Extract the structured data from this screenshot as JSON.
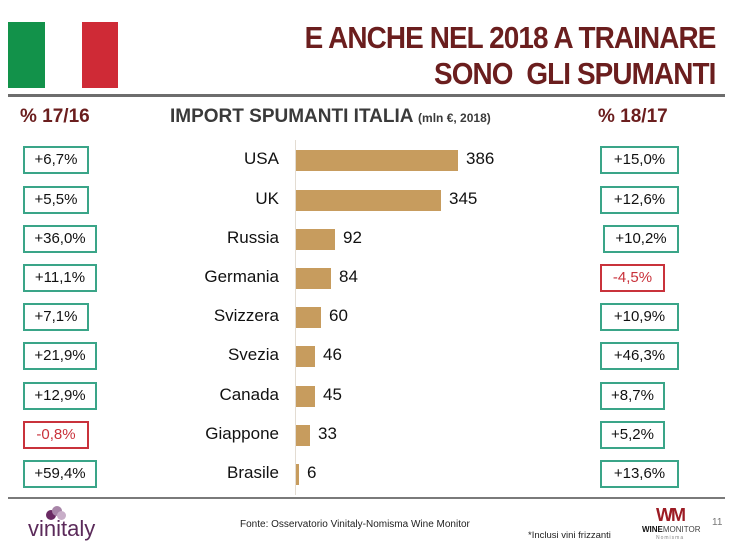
{
  "header": {
    "title_line1": "E ANCHE NEL 2018 A TRAINARE",
    "title_line2": "SONO  GLI SPUMANTI",
    "flag_colors": {
      "green": "#12924a",
      "white": "#ffffff",
      "red": "#cf2a36"
    }
  },
  "columns": {
    "left_header": "% 17/16",
    "right_header": "% 18/17"
  },
  "chart_title": {
    "main": "IMPORT SPUMANTI ITALIA",
    "unit": "(mln €, 2018)"
  },
  "rows": [
    {
      "country": "USA",
      "value": "386",
      "pct_17_16": "+6,7%",
      "pct_18_17": "+15,0%"
    },
    {
      "country": "UK",
      "value": "345",
      "pct_17_16": "+5,5%",
      "pct_18_17": "+12,6%"
    },
    {
      "country": "Russia",
      "value": "92",
      "pct_17_16": "+36,0%",
      "pct_18_17": "+10,2%"
    },
    {
      "country": "Germania",
      "value": "84",
      "pct_17_16": "+11,1%",
      "pct_18_17": "-4,5%"
    },
    {
      "country": "Svizzera",
      "value": "60",
      "pct_17_16": "+7,1%",
      "pct_18_17": "+10,9%"
    },
    {
      "country": "Svezia",
      "value": "46",
      "pct_17_16": "+21,9%",
      "pct_18_17": "+46,3%"
    },
    {
      "country": "Canada",
      "value": "45",
      "pct_17_16": "+12,9%",
      "pct_18_17": "+8,7%"
    },
    {
      "country": "Giappone",
      "value": "33",
      "pct_17_16": "-0,8%",
      "pct_18_17": "+5,2%"
    },
    {
      "country": "Brasile",
      "value": "6",
      "pct_17_16": "+59,4%",
      "pct_18_17": "+13,6%"
    }
  ],
  "colors": {
    "title": "#6b1e1e",
    "bar": "#c79c5e",
    "positive_border": "#3aa588",
    "negative": "#c9323b"
  },
  "footer": {
    "brand_left": "vinitaly",
    "source": "Fonte: Osservatorio Vinitaly-Nomisma Wine Monitor",
    "footnote": "*Inclusi vini frizzanti",
    "brand_right_mark": "WM",
    "brand_right_bold": "WINE",
    "brand_right_rest": "MONITOR",
    "brand_right_sub": "Nomisma",
    "page_number": "11"
  },
  "chart_data": {
    "type": "bar",
    "orientation": "horizontal",
    "title": "IMPORT SPUMANTI ITALIA (mln €, 2018)",
    "categories": [
      "USA",
      "UK",
      "Russia",
      "Germania",
      "Svizzera",
      "Svezia",
      "Canada",
      "Giappone",
      "Brasile"
    ],
    "values": [
      386,
      345,
      92,
      84,
      60,
      46,
      45,
      33,
      6
    ],
    "xlabel": "",
    "ylabel": "",
    "grid": false,
    "annotations": {
      "pct_17_16": [
        "+6,7%",
        "+5,5%",
        "+36,0%",
        "+11,1%",
        "+7,1%",
        "+21,9%",
        "+12,9%",
        "-0,8%",
        "+59,4%"
      ],
      "pct_18_17": [
        "+15,0%",
        "+12,6%",
        "+10,2%",
        "-4,5%",
        "+10,9%",
        "+46,3%",
        "+8,7%",
        "+5,2%",
        "+13,6%"
      ]
    }
  }
}
